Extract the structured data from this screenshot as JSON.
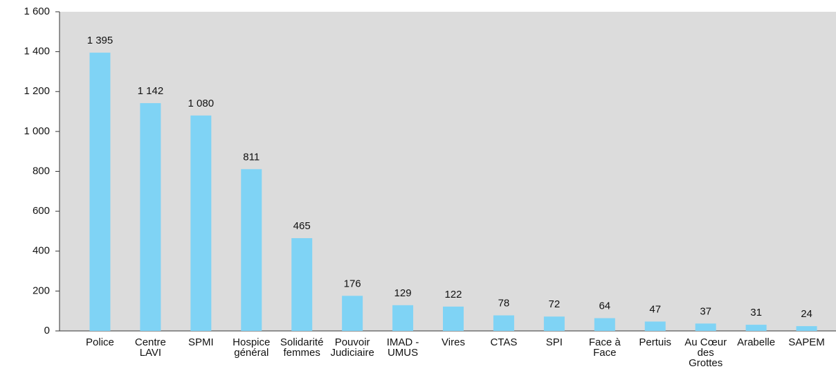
{
  "chart_data": {
    "type": "bar",
    "categories": [
      "Police",
      "Centre LAVI",
      "SPMI",
      "Hospice général",
      "Solidarité femmes",
      "Pouvoir Judiciaire",
      "IMAD - UMUS",
      "Vires",
      "CTAS",
      "SPI",
      "Face à Face",
      "Pertuis",
      "Au Cœur des Grottes",
      "Arabelle",
      "SAPEM"
    ],
    "values": [
      1395,
      1142,
      1080,
      811,
      465,
      176,
      129,
      122,
      78,
      72,
      64,
      47,
      37,
      31,
      24
    ],
    "value_labels": [
      "1 395",
      "1 142",
      "1 080",
      "811",
      "465",
      "176",
      "129",
      "122",
      "78",
      "72",
      "64",
      "47",
      "37",
      "31",
      "24"
    ],
    "color": "#7fd3f5",
    "background": "#dcdcdc",
    "ylim": [
      0,
      1600
    ],
    "yticks": [
      0,
      200,
      400,
      600,
      800,
      {
        "value": 1000,
        "label": "1 000"
      },
      {
        "value": 1200,
        "label": "1 200"
      },
      {
        "value": 1400,
        "label": "1 400"
      },
      {
        "value": 1600,
        "label": "1 600"
      }
    ]
  }
}
